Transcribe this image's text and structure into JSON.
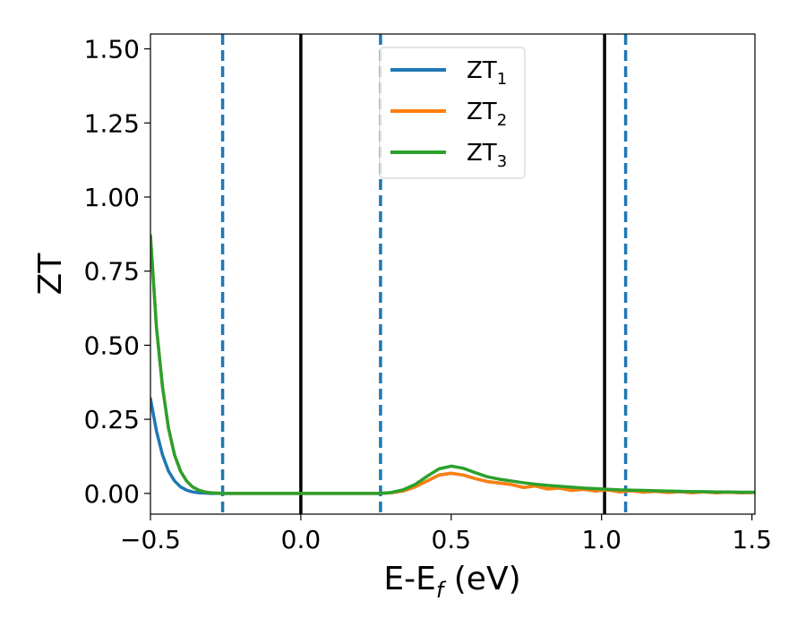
{
  "chart_data": {
    "type": "line",
    "xlabel_main": "E-E",
    "xlabel_sub": "f",
    "xlabel_rest": " (eV)",
    "ylabel": "ZT",
    "xlim": [
      -0.5,
      1.51
    ],
    "ylim": [
      -0.07,
      1.55
    ],
    "x_ticks": [
      -0.5,
      0.0,
      0.5,
      1.0,
      1.5
    ],
    "x_tick_labels": [
      "−0.5",
      "0.0",
      "0.5",
      "1.0",
      "1.5"
    ],
    "y_ticks": [
      0.0,
      0.25,
      0.5,
      0.75,
      1.0,
      1.25,
      1.5
    ],
    "y_tick_labels": [
      "0.00",
      "0.25",
      "0.50",
      "0.75",
      "1.00",
      "1.25",
      "1.50"
    ],
    "grid": false,
    "legend_placement": "top-center",
    "vlines_solid": [
      0.0,
      1.01
    ],
    "vlines_dashed": [
      -0.26,
      0.265,
      1.08
    ],
    "vline_solid_color": "#000000",
    "vline_dashed_color": "#1f77b4",
    "series": [
      {
        "name_main": "ZT",
        "name_sub": "1",
        "color": "#1f77b4",
        "x": [
          -0.5,
          -0.48,
          -0.46,
          -0.44,
          -0.42,
          -0.4,
          -0.38,
          -0.36,
          -0.34,
          -0.32,
          -0.3,
          -0.26,
          -0.2,
          0.0,
          0.2,
          0.26,
          0.3,
          0.34,
          0.38,
          0.42,
          0.46,
          0.5,
          0.54,
          0.58,
          0.62,
          0.66,
          0.7,
          0.74,
          0.78,
          0.82,
          0.86,
          0.9,
          0.94,
          0.98,
          1.02,
          1.06,
          1.1,
          1.14,
          1.18,
          1.22,
          1.26,
          1.3,
          1.34,
          1.38,
          1.42,
          1.46,
          1.51
        ],
        "y": [
          0.32,
          0.21,
          0.13,
          0.075,
          0.042,
          0.022,
          0.011,
          0.005,
          0.002,
          0.001,
          0.0,
          0.0,
          0.0,
          0.0,
          0.0,
          0.0,
          0.002,
          0.008,
          0.022,
          0.042,
          0.062,
          0.068,
          0.062,
          0.05,
          0.04,
          0.035,
          0.03,
          0.02,
          0.025,
          0.015,
          0.018,
          0.01,
          0.014,
          0.008,
          0.012,
          0.005,
          0.009,
          0.004,
          0.007,
          0.003,
          0.006,
          0.002,
          0.005,
          0.002,
          0.004,
          0.002,
          0.003
        ]
      },
      {
        "name_main": "ZT",
        "name_sub": "2",
        "color": "#ff7f0e",
        "x": [
          -0.5,
          -0.48,
          -0.46,
          -0.44,
          -0.42,
          -0.4,
          -0.38,
          -0.36,
          -0.34,
          -0.32,
          -0.3,
          -0.26,
          -0.2,
          0.0,
          0.2,
          0.26,
          0.3,
          0.34,
          0.38,
          0.42,
          0.46,
          0.5,
          0.54,
          0.58,
          0.62,
          0.66,
          0.7,
          0.74,
          0.78,
          0.82,
          0.86,
          0.9,
          0.94,
          0.98,
          1.02,
          1.06,
          1.1,
          1.14,
          1.18,
          1.22,
          1.26,
          1.3,
          1.34,
          1.38,
          1.42,
          1.46,
          1.51
        ],
        "y": [
          0.87,
          0.56,
          0.36,
          0.22,
          0.13,
          0.075,
          0.042,
          0.022,
          0.011,
          0.005,
          0.002,
          0.0,
          0.0,
          0.0,
          0.0,
          0.0,
          0.002,
          0.008,
          0.022,
          0.042,
          0.062,
          0.068,
          0.062,
          0.05,
          0.04,
          0.035,
          0.03,
          0.02,
          0.025,
          0.015,
          0.018,
          0.01,
          0.014,
          0.008,
          0.012,
          0.005,
          0.009,
          0.004,
          0.007,
          0.003,
          0.006,
          0.002,
          0.005,
          0.002,
          0.004,
          0.002,
          0.003
        ]
      },
      {
        "name_main": "ZT",
        "name_sub": "3",
        "color": "#2ca02c",
        "x": [
          -0.5,
          -0.48,
          -0.46,
          -0.44,
          -0.42,
          -0.4,
          -0.38,
          -0.36,
          -0.34,
          -0.32,
          -0.3,
          -0.26,
          -0.2,
          0.0,
          0.2,
          0.26,
          0.3,
          0.34,
          0.38,
          0.42,
          0.46,
          0.5,
          0.54,
          0.58,
          0.62,
          0.66,
          0.7,
          0.74,
          0.78,
          0.82,
          0.86,
          0.9,
          0.94,
          0.98,
          1.02,
          1.06,
          1.1,
          1.14,
          1.18,
          1.22,
          1.26,
          1.3,
          1.34,
          1.38,
          1.42,
          1.46,
          1.51
        ],
        "y": [
          0.87,
          0.56,
          0.36,
          0.22,
          0.13,
          0.075,
          0.042,
          0.022,
          0.011,
          0.005,
          0.002,
          0.0,
          0.0,
          0.0,
          0.0,
          0.0,
          0.003,
          0.012,
          0.03,
          0.058,
          0.083,
          0.092,
          0.085,
          0.07,
          0.056,
          0.048,
          0.042,
          0.036,
          0.031,
          0.027,
          0.024,
          0.021,
          0.018,
          0.016,
          0.014,
          0.012,
          0.011,
          0.01,
          0.009,
          0.008,
          0.007,
          0.006,
          0.006,
          0.005,
          0.005,
          0.004,
          0.004
        ]
      }
    ]
  }
}
